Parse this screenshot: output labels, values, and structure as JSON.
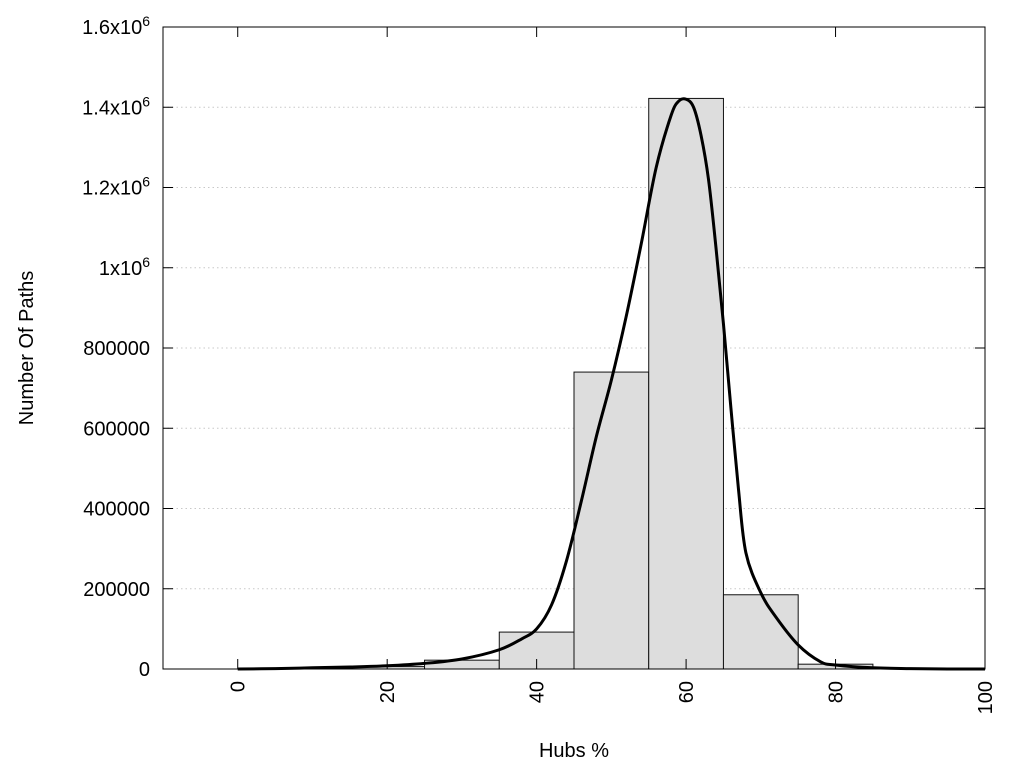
{
  "chart_data": {
    "type": "bar",
    "xlabel": "Hubs %",
    "ylabel": "Number Of Paths",
    "xlim": [
      -10,
      100
    ],
    "ylim": [
      0,
      1600000
    ],
    "x_ticks": [
      {
        "value": 0,
        "label": "0"
      },
      {
        "value": 20,
        "label": "20"
      },
      {
        "value": 40,
        "label": "40"
      },
      {
        "value": 60,
        "label": "60"
      },
      {
        "value": 80,
        "label": "80"
      },
      {
        "value": 100,
        "label": "100"
      }
    ],
    "y_ticks": [
      {
        "value": 0,
        "label": "0"
      },
      {
        "value": 200000,
        "label": "200000"
      },
      {
        "value": 400000,
        "label": "400000"
      },
      {
        "value": 600000,
        "label": "600000"
      },
      {
        "value": 800000,
        "label": "800000"
      },
      {
        "value": 1000000,
        "label": "1x10",
        "sup": "6"
      },
      {
        "value": 1200000,
        "label": "1.2x10",
        "sup": "6"
      },
      {
        "value": 1400000,
        "label": "1.4x10",
        "sup": "6"
      },
      {
        "value": 1600000,
        "label": "1.6x10",
        "sup": "6"
      }
    ],
    "grid": "horizontal dotted",
    "legend": "none",
    "bins": [
      {
        "from": 5,
        "to": 15,
        "value": 1500
      },
      {
        "from": 15,
        "to": 25,
        "value": 6000
      },
      {
        "from": 25,
        "to": 35,
        "value": 22000
      },
      {
        "from": 35,
        "to": 45,
        "value": 92000
      },
      {
        "from": 45,
        "to": 55,
        "value": 740000
      },
      {
        "from": 55,
        "to": 65,
        "value": 1422000
      },
      {
        "from": 65,
        "to": 75,
        "value": 185000
      },
      {
        "from": 75,
        "to": 85,
        "value": 12000
      },
      {
        "from": 85,
        "to": 95,
        "value": 1500
      }
    ],
    "curve": {
      "x": [
        0,
        5,
        10,
        15,
        20,
        25,
        30,
        35,
        38,
        40,
        42,
        44,
        46,
        48,
        50,
        52,
        54,
        56,
        58,
        59,
        60,
        61,
        62,
        63,
        64,
        65,
        66,
        67,
        68,
        70,
        72,
        75,
        78,
        80,
        85,
        90,
        95,
        100
      ],
      "y": [
        0,
        1000,
        3000,
        5000,
        8000,
        14000,
        25000,
        48000,
        75000,
        100000,
        160000,
        270000,
        420000,
        580000,
        720000,
        880000,
        1060000,
        1250000,
        1380000,
        1415000,
        1420000,
        1400000,
        1330000,
        1220000,
        1050000,
        860000,
        650000,
        450000,
        290000,
        190000,
        130000,
        60000,
        18000,
        10000,
        3000,
        1000,
        0,
        0
      ]
    },
    "colors": {
      "bar_fill": "#dddddd",
      "bar_stroke": "#111111",
      "curve": "#000000",
      "grid": "#c8c8c8",
      "frame": "#000000"
    }
  }
}
